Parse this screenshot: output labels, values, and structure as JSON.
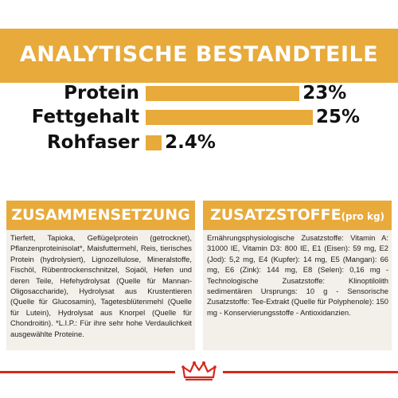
{
  "header": {
    "title": "ANALYTISCHE BESTANDTEILE",
    "band_color": "#e8aa3a"
  },
  "nutrients": [
    {
      "label": "Protein",
      "value_text": "23%",
      "value": 23
    },
    {
      "label": "Fettgehalt",
      "value_text": "25%",
      "value": 25
    },
    {
      "label": "Rohfaser",
      "value_text": "2.4%",
      "value": 2.4
    }
  ],
  "composition": {
    "title": "ZUSAMMENSETZUNG",
    "text": "Tierfett, Tapioka, Geflügelprotein (getrocknet), Pflanzenproteinisolat*, Maisfuttermehl, Reis, tierisches Protein (hydrolysiert), Lignozellulose, Mineralstoffe, Fischöl, Rübentrockenschnitzel, Sojaöl, Hefen und deren Teile, Hefehydrolysat (Quelle für Mannan-Oligosaccharide), Hydrolysat aus Krustentieren (Quelle für Glucosamin), Tagetesblütenmehl (Quelle für Lutein), Hydrolysat aus Knorpel (Quelle für Chondroitin). *L.I.P.: Für ihre sehr hohe Verdaulichkeit ausgewählte Proteine."
  },
  "additives": {
    "title": "ZUSATZSTOFFE",
    "title_suffix": "(pro kg)",
    "text": "Ernährungsphysiologische Zusatzstoffe: Vitamin A: 31000 IE, Vitamin D3: 800 IE, E1 (Eisen): 59 mg, E2 (Jod): 5,2 mg, E4 (Kupfer): 14 mg, E5 (Mangan): 66 mg, E6 (Zink): 144 mg, E8 (Selen): 0,16 mg - Technologische Zusatzstoffe: Klinoptilolith sedimentären Ursprungs: 10 g - Sensorische Zusatzstoffe: Tee-Extrakt (Quelle für Polyphenole): 150 mg - Konservierungsstoffe - Antioxidanzien."
  },
  "colors": {
    "accent": "#e8aa3a",
    "panel": "#f3efe9",
    "footer": "#d4281c"
  },
  "icons": {
    "footer_logo": "crown-icon"
  }
}
